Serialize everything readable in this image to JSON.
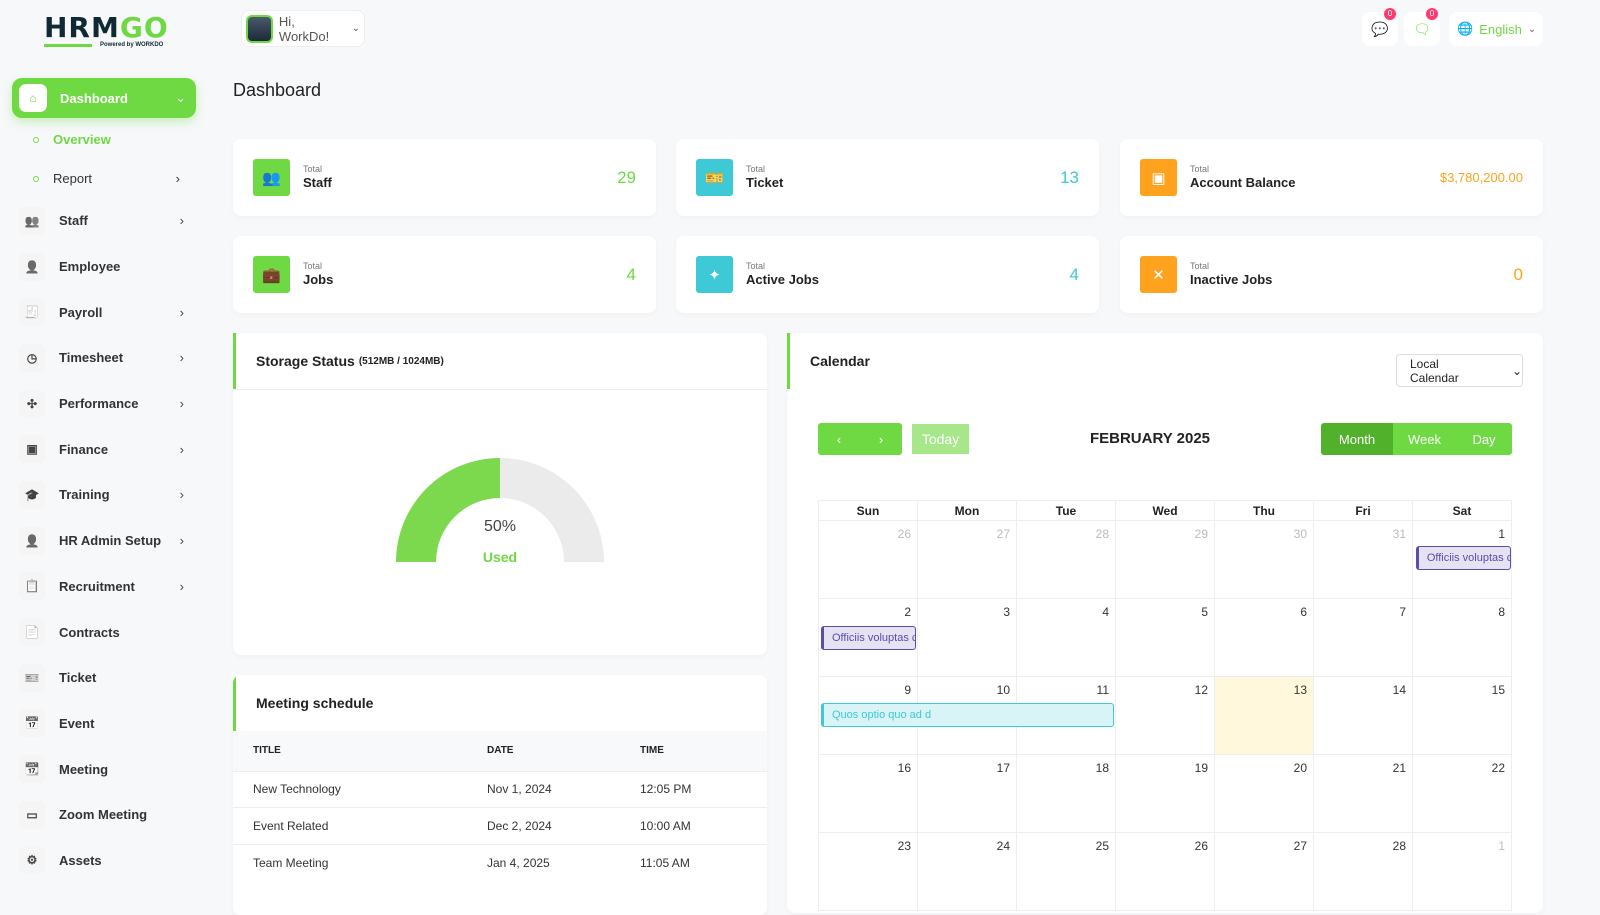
{
  "brand": {
    "logo": "HRMGO",
    "powered": "Powered by WORKDO"
  },
  "header": {
    "greeting": "Hi, WorkDo!",
    "messages_count": "0",
    "notifications_count": "0",
    "language": "English"
  },
  "sidebar": {
    "items": [
      {
        "label": "Dashboard",
        "icon": "home-icon",
        "glyph": "⌂",
        "active": true,
        "chevron": "⌄"
      },
      {
        "label": "Staff",
        "icon": "users-icon",
        "glyph": "👥",
        "chevron": "›"
      },
      {
        "label": "Employee",
        "icon": "user-icon",
        "glyph": "👤"
      },
      {
        "label": "Payroll",
        "icon": "receipt-icon",
        "glyph": "🧾",
        "chevron": "›"
      },
      {
        "label": "Timesheet",
        "icon": "clock-icon",
        "glyph": "◷",
        "chevron": "›"
      },
      {
        "label": "Performance",
        "icon": "performance-icon",
        "glyph": "✣",
        "chevron": "›"
      },
      {
        "label": "Finance",
        "icon": "wallet-icon",
        "glyph": "▣",
        "chevron": "›"
      },
      {
        "label": "Training",
        "icon": "graduation-icon",
        "glyph": "🎓",
        "chevron": "›"
      },
      {
        "label": "HR Admin Setup",
        "icon": "user-plus-icon",
        "glyph": "👤",
        "chevron": "›"
      },
      {
        "label": "Recruitment",
        "icon": "clipboard-icon",
        "glyph": "📋",
        "chevron": "›"
      },
      {
        "label": "Contracts",
        "icon": "contract-icon",
        "glyph": "📄"
      },
      {
        "label": "Ticket",
        "icon": "ticket-icon",
        "glyph": "🎫"
      },
      {
        "label": "Event",
        "icon": "calendar-icon",
        "glyph": "📅"
      },
      {
        "label": "Meeting",
        "icon": "calendar-clock-icon",
        "glyph": "📆"
      },
      {
        "label": "Zoom Meeting",
        "icon": "video-icon",
        "glyph": "▭"
      },
      {
        "label": "Assets",
        "icon": "gear-icon",
        "glyph": "⚙"
      }
    ],
    "sub": [
      {
        "label": "Overview",
        "active": true
      },
      {
        "label": "Report",
        "chevron": "›"
      }
    ]
  },
  "page_title": "Dashboard",
  "stats": [
    {
      "small": "Total",
      "label": "Staff",
      "value": "29",
      "color": "#6fd943",
      "glyph": "👥",
      "icon": "users-icon"
    },
    {
      "small": "Total",
      "label": "Ticket",
      "value": "13",
      "color": "#3ec9d6",
      "glyph": "🎫",
      "icon": "ticket-icon"
    },
    {
      "small": "Total",
      "label": "Account Balance",
      "value": "$3,780,200.00",
      "color": "#ffa21d",
      "glyph": "▣",
      "icon": "wallet-icon"
    },
    {
      "small": "Total",
      "label": "Jobs",
      "value": "4",
      "color": "#6fd943",
      "glyph": "💼",
      "icon": "briefcase-icon"
    },
    {
      "small": "Total",
      "label": "Active Jobs",
      "value": "4",
      "color": "#3ec9d6",
      "glyph": "✦",
      "icon": "active-jobs-icon"
    },
    {
      "small": "Total",
      "label": "Inactive Jobs",
      "value": "0",
      "color": "#ffa21d",
      "glyph": "✕",
      "icon": "inactive-jobs-icon"
    }
  ],
  "storage": {
    "title": "Storage Status",
    "detail": "(512MB / 1024MB)",
    "percent": 50,
    "percent_label": "50%",
    "used_label": "Used"
  },
  "meetings": {
    "title": "Meeting schedule",
    "columns": [
      "TITLE",
      "DATE",
      "TIME"
    ],
    "rows": [
      [
        "New Technology",
        "Nov 1, 2024",
        "12:05 PM"
      ],
      [
        "Event Related",
        "Dec 2, 2024",
        "10:00 AM"
      ],
      [
        "Team Meeting",
        "Jan 4, 2025",
        "11:05 AM"
      ]
    ]
  },
  "calendar": {
    "title": "Calendar",
    "source": "Local Calendar",
    "today_label": "Today",
    "month_title": "FEBRUARY 2025",
    "views": [
      "Month",
      "Week",
      "Day"
    ],
    "active_view": "Month",
    "weekdays": [
      "Sun",
      "Mon",
      "Tue",
      "Wed",
      "Thu",
      "Fri",
      "Sat"
    ],
    "weeks": [
      [
        26,
        27,
        28,
        29,
        30,
        31,
        1
      ],
      [
        2,
        3,
        4,
        5,
        6,
        7,
        8
      ],
      [
        9,
        10,
        11,
        12,
        13,
        14,
        15
      ],
      [
        16,
        17,
        18,
        19,
        20,
        21,
        22
      ],
      [
        23,
        24,
        25,
        26,
        27,
        28,
        1
      ]
    ],
    "today": 13,
    "events": [
      {
        "title": "Officiis voluptas c",
        "week": 0,
        "start": 6,
        "span": 1,
        "color": "#5b4ea8",
        "bg": "#e6e1f3"
      },
      {
        "title": "Officiis voluptas c",
        "week": 1,
        "start": 0,
        "span": 1,
        "color": "#5b4ea8",
        "bg": "#e6e1f3"
      },
      {
        "title": "Quos optio quo ad d",
        "week": 2,
        "start": 0,
        "span": 3,
        "color": "#3ec9d6",
        "bg": "#d9f4f7"
      }
    ]
  }
}
